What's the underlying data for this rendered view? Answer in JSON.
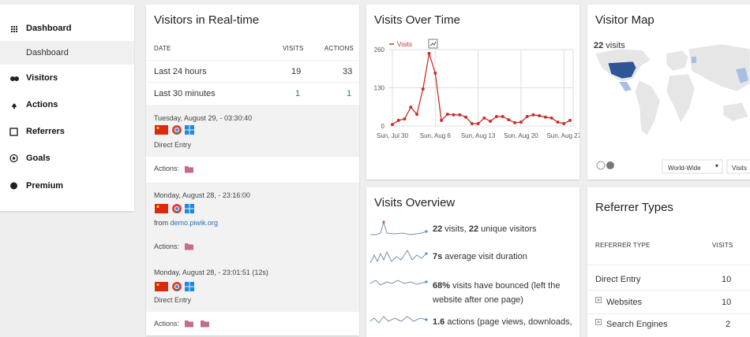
{
  "sidebar": {
    "items": [
      "Dashboard",
      "Visitors",
      "Actions",
      "Referrers",
      "Goals",
      "Premium"
    ],
    "submenu": [
      "Dashboard"
    ]
  },
  "realtime": {
    "title": "Visitors in Real-time",
    "headers": [
      "DATE",
      "VISITS",
      "ACTIONS"
    ],
    "rows": [
      [
        "Last 24 hours",
        "19",
        "33"
      ],
      [
        "Last 30 minutes",
        "1",
        "1"
      ]
    ],
    "visits": [
      {
        "datetime": "Tuesday, August 29, - 03:30:40",
        "source": "Direct Entry",
        "actions": "Actions:"
      },
      {
        "datetime": "Monday, August 28, - 23:16:00",
        "source_prefix": "from",
        "source_link": "demo.piwik.org",
        "actions": "Actions:"
      },
      {
        "datetime": "Monday, August 28, - 23:01:51 (12s)",
        "source": "Direct Entry",
        "actions": "Actions:"
      }
    ]
  },
  "chart_data": {
    "type": "line",
    "title": "Visits Over Time",
    "categories": [
      "Sun, Jul 30",
      null,
      null,
      null,
      null,
      null,
      null,
      "Sun, Aug 6",
      null,
      null,
      null,
      null,
      null,
      null,
      "Sun, Aug 13",
      null,
      null,
      null,
      null,
      null,
      null,
      "Sun, Aug 20",
      null,
      null,
      null,
      null,
      null,
      null,
      "Sun, Aug 27",
      null
    ],
    "series": [
      {
        "name": "Visits",
        "color": "#c9302c",
        "values": [
          5,
          19,
          24,
          64,
          40,
          126,
          247,
          180,
          19,
          40,
          38,
          38,
          30,
          8,
          8,
          27,
          16,
          32,
          32,
          21,
          11,
          13,
          32,
          38,
          35,
          30,
          27,
          13,
          8,
          19
        ]
      }
    ],
    "ylim": [
      0,
      260
    ],
    "yticks": [
      0,
      130,
      260
    ],
    "grid": true
  },
  "overview": {
    "title": "Visits Overview",
    "items": [
      [
        {
          "text": "22",
          "bold": true
        },
        {
          "text": " visits, "
        },
        {
          "text": "22",
          "bold": true
        },
        {
          "text": " unique visitors"
        }
      ],
      [
        {
          "text": "7s",
          "bold": true
        },
        {
          "text": " average visit duration"
        }
      ],
      [
        {
          "text": "68%",
          "bold": true
        },
        {
          "text": " visits have bounced (left the website after one page)"
        }
      ],
      [
        {
          "text": "1.6",
          "bold": true
        },
        {
          "text": " actions (page views, downloads,"
        }
      ]
    ]
  },
  "map": {
    "title": "Visitor Map",
    "summary": [
      {
        "text": "22",
        "bold": true
      },
      {
        "text": " visits"
      }
    ],
    "region": "World-Wide",
    "metric": "Visits"
  },
  "referrers": {
    "title": "Referrer Types",
    "headers": [
      "REFERRER TYPE",
      "VISITS"
    ],
    "rows": [
      [
        "Direct Entry",
        "10"
      ],
      [
        "Websites",
        "10"
      ],
      [
        "Search Engines",
        "2"
      ]
    ]
  }
}
